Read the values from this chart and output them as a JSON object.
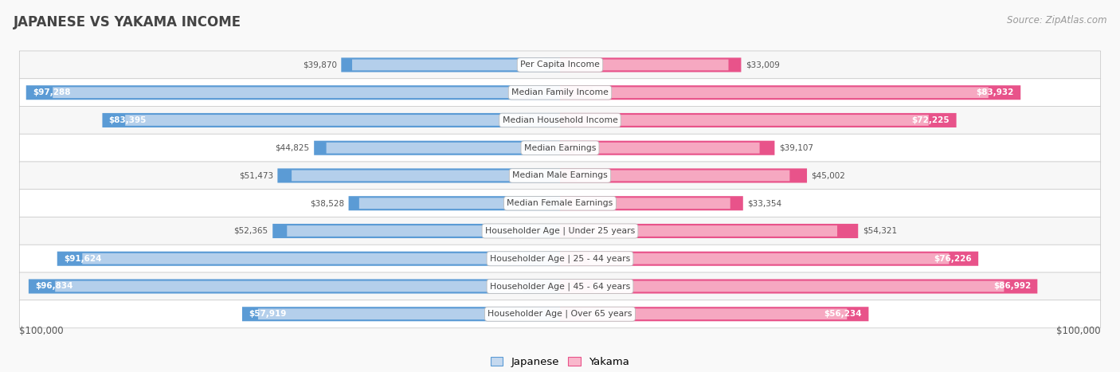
{
  "title": "JAPANESE VS YAKAMA INCOME",
  "source": "Source: ZipAtlas.com",
  "x_max": 100000,
  "categories": [
    "Per Capita Income",
    "Median Family Income",
    "Median Household Income",
    "Median Earnings",
    "Median Male Earnings",
    "Median Female Earnings",
    "Householder Age | Under 25 years",
    "Householder Age | 25 - 44 years",
    "Householder Age | 45 - 64 years",
    "Householder Age | Over 65 years"
  ],
  "japanese_values": [
    39870,
    97288,
    83395,
    44825,
    51473,
    38528,
    52365,
    91624,
    96834,
    57919
  ],
  "yakama_values": [
    33009,
    83932,
    72225,
    39107,
    45002,
    33354,
    54321,
    76226,
    86992,
    56234
  ],
  "japanese_labels": [
    "$39,870",
    "$97,288",
    "$83,395",
    "$44,825",
    "$51,473",
    "$38,528",
    "$52,365",
    "$91,624",
    "$96,834",
    "$57,919"
  ],
  "yakama_labels": [
    "$33,009",
    "$83,932",
    "$72,225",
    "$39,107",
    "$45,002",
    "$33,354",
    "$54,321",
    "$76,226",
    "$86,992",
    "$56,234"
  ],
  "japanese_color_light": "#c5d9ef",
  "japanese_color_dark": "#5b9bd5",
  "yakama_color_light": "#f9b8cc",
  "yakama_color_dark": "#e8538a",
  "row_colors": [
    "#f7f7f7",
    "#ffffff"
  ],
  "label_inside_color": "#ffffff",
  "label_outside_color": "#555555",
  "title_color": "#444444",
  "source_color": "#999999",
  "bg_color": "#f9f9f9",
  "threshold_inside": 55000,
  "bottom_label": "$100,000"
}
